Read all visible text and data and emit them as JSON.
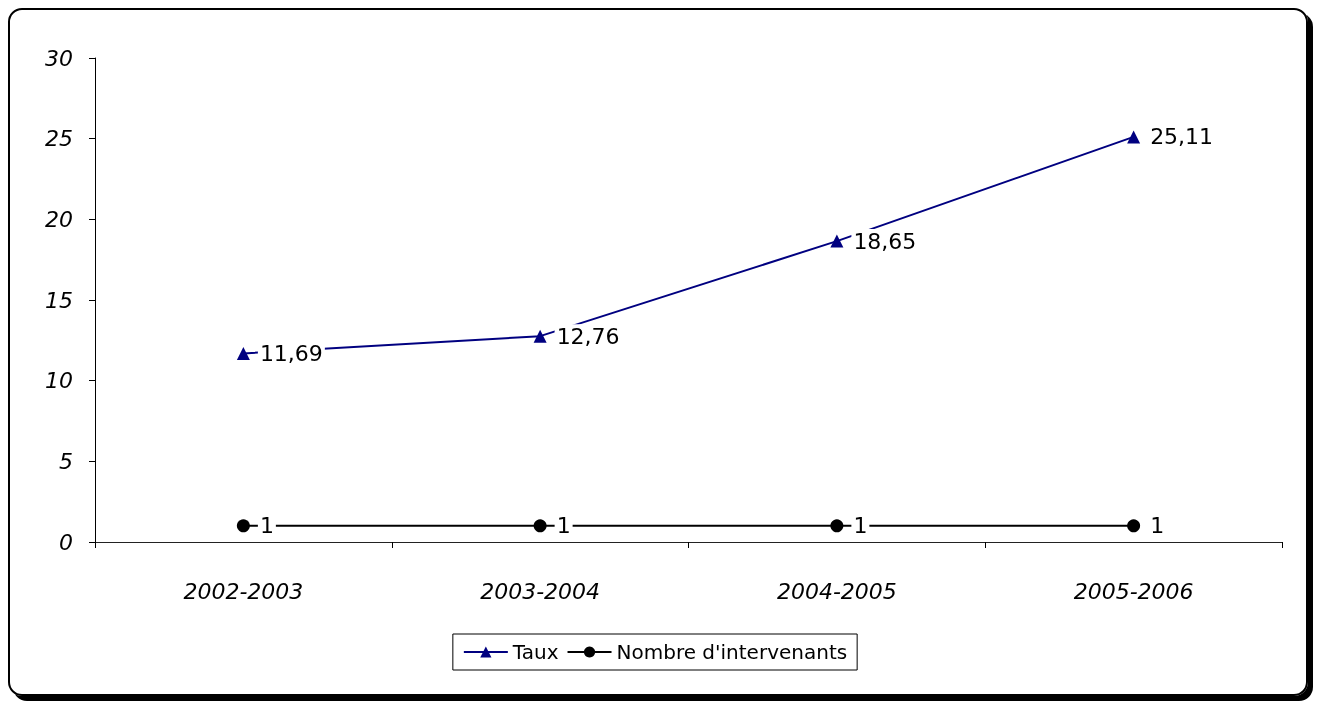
{
  "chart_data": {
    "type": "line",
    "categories": [
      "2002-2003",
      "2003-2004",
      "2004-2005",
      "2005-2006"
    ],
    "series": [
      {
        "name": "Taux",
        "color": "#000080",
        "marker": "triangle",
        "values": [
          11.69,
          12.76,
          18.65,
          25.11
        ],
        "value_labels": [
          "11,69",
          "12,76",
          "18,65",
          "25,11"
        ]
      },
      {
        "name": "Nombre d'intervenants",
        "color": "#000000",
        "marker": "circle",
        "values": [
          1,
          1,
          1,
          1
        ],
        "value_labels": [
          "1",
          "1",
          "1",
          "1"
        ]
      }
    ],
    "ylim": [
      0,
      30
    ],
    "yticks": [
      0,
      5,
      10,
      15,
      20,
      25,
      30
    ],
    "grid": false,
    "legend": "bottom"
  }
}
